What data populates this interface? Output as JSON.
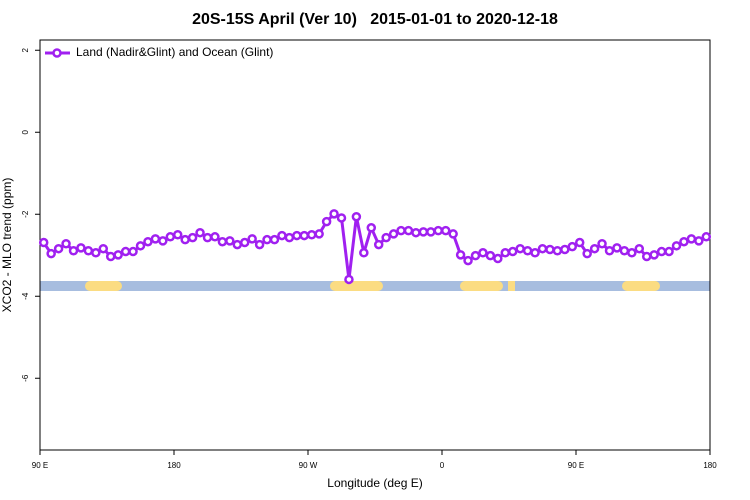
{
  "chart_data": {
    "type": "line",
    "title": "20S-15S April (Ver 10)   2015-01-01 to 2020-12-18",
    "xlabel": "Longitude (deg E)",
    "ylabel": "XCO2 - MLO trend (ppm)",
    "xlim": [
      90,
      540
    ],
    "ylim": [
      -7.75,
      2.25
    ],
    "xticks": [
      {
        "value": 90,
        "label": "90 E"
      },
      180,
      {
        "value": 270,
        "label": "90 W"
      },
      {
        "value": 360,
        "label": "0"
      },
      {
        "value": 450,
        "label": "90 E"
      },
      {
        "value": 540,
        "label": "180"
      }
    ],
    "yticks": [
      2,
      0,
      -2,
      -4,
      -6
    ],
    "legend": "top-left",
    "x": [
      92.5,
      97.5,
      102.5,
      107.5,
      112.5,
      117.5,
      122.5,
      127.5,
      132.5,
      137.5,
      142.5,
      147.5,
      152.5,
      157.5,
      162.5,
      167.5,
      172.5,
      177.5,
      182.5,
      187.5,
      192.5,
      197.5,
      202.5,
      207.5,
      212.5,
      217.5,
      222.5,
      227.5,
      232.5,
      237.5,
      242.5,
      247.5,
      252.5,
      257.5,
      262.5,
      267.5,
      272.5,
      277.5,
      282.5,
      287.5,
      292.5,
      297.5,
      302.5,
      307.5,
      312.5,
      317.5,
      322.5,
      327.5,
      332.5,
      337.5,
      342.5,
      347.5,
      352.5,
      357.5,
      362.5,
      367.5,
      372.5,
      377.5,
      382.5,
      387.5,
      392.5,
      397.5,
      402.5,
      407.5,
      412.5,
      417.5,
      422.5,
      427.5,
      432.5,
      437.5,
      442.5,
      447.5,
      452.5,
      457.5,
      462.5,
      467.5,
      472.5,
      477.5,
      482.5,
      487.5,
      492.5,
      497.5,
      502.5,
      507.5,
      512.5,
      517.5,
      522.5,
      527.5,
      532.5,
      537.5
    ],
    "series": [
      {
        "name": "Land (Nadir&Glint) and Ocean (Glint)",
        "color": "#a020f0",
        "values": [
          -2.69,
          -2.96,
          -2.84,
          -2.72,
          -2.89,
          -2.82,
          -2.89,
          -2.94,
          -2.84,
          -3.03,
          -2.99,
          -2.91,
          -2.91,
          -2.77,
          -2.67,
          -2.6,
          -2.65,
          -2.55,
          -2.5,
          -2.62,
          -2.57,
          -2.45,
          -2.57,
          -2.55,
          -2.67,
          -2.65,
          -2.74,
          -2.69,
          -2.6,
          -2.74,
          -2.62,
          -2.62,
          -2.52,
          -2.57,
          -2.52,
          -2.52,
          -2.5,
          -2.48,
          -2.18,
          -1.99,
          -2.09,
          -3.59,
          -2.06,
          -2.94,
          -2.33,
          -2.74,
          -2.57,
          -2.48,
          -2.4,
          -2.4,
          -2.45,
          -2.43,
          -2.43,
          -2.4,
          -2.4,
          -2.48,
          -2.99,
          -3.13,
          -3.01,
          -2.94,
          -3.01,
          -3.08,
          -2.94,
          -2.91,
          -2.84,
          -2.89,
          -2.94,
          -2.84,
          -2.86,
          -2.89,
          -2.86,
          -2.79,
          -2.69,
          -2.96,
          -2.84,
          -2.72,
          -2.89,
          -2.82,
          -2.89,
          -2.94,
          -2.84,
          -3.03,
          -2.99,
          -2.91,
          -2.91,
          -2.77,
          -2.67,
          -2.6,
          -2.65,
          -2.55
        ]
      }
    ]
  }
}
